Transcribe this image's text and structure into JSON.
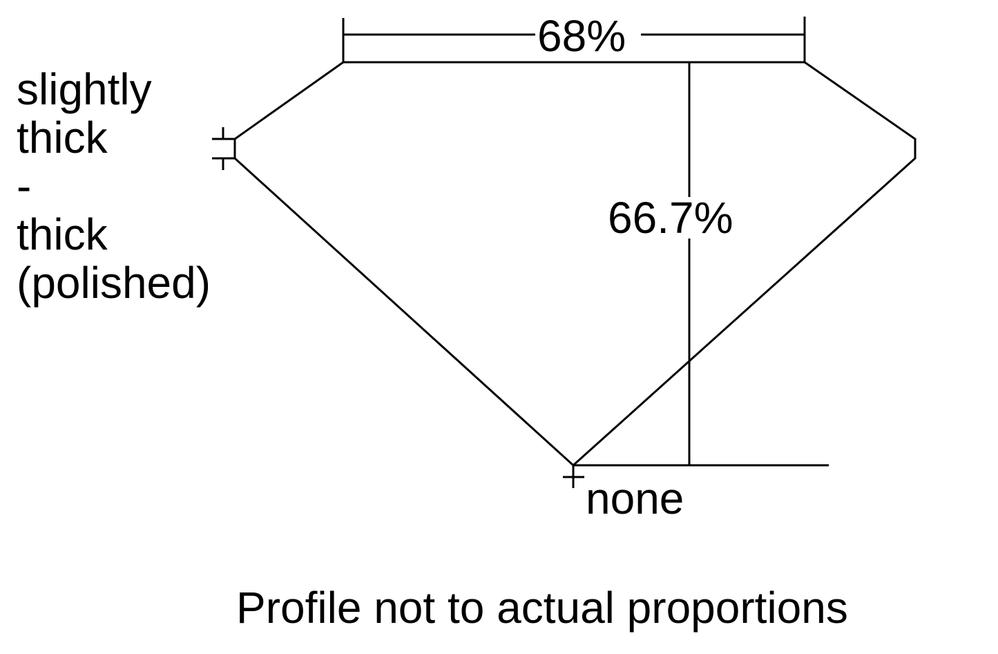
{
  "diagram": {
    "table_percent": "68%",
    "depth_percent": "66.7%",
    "girdle_label_lines": [
      "slightly",
      "thick",
      "-",
      "thick",
      "(polished)"
    ],
    "culet_label": "none",
    "footnote": "Profile not to actual proportions",
    "line_color": "#000000",
    "background_color": "#ffffff"
  }
}
